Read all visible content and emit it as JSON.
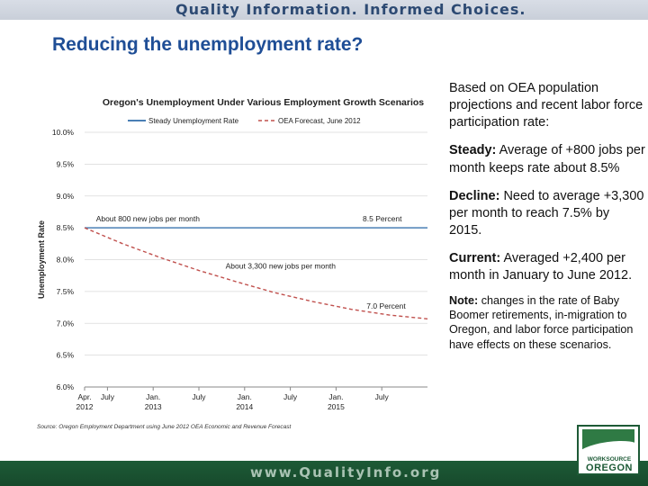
{
  "banner": {
    "top": "Quality Information. Informed Choices.",
    "bottom": "www.QualityInfo.org"
  },
  "slide": {
    "title": "Reducing the unemployment rate?"
  },
  "right_panel": {
    "intro": "Based on OEA population projections and recent labor force participation rate:",
    "steady_label": "Steady:",
    "steady_text": "Average of +800 jobs per month keeps rate about 8.5%",
    "decline_label": "Decline:",
    "decline_text": "Need to average +3,300 per month to reach 7.5% by 2015.",
    "current_label": "Current:",
    "current_text": "Averaged +2,400 per month in January to June 2012.",
    "note_label": "Note:",
    "note_text": "changes in the rate of Baby Boomer retirements, in-migration to Oregon, and labor force participation have effects on these scenarios."
  },
  "logo": {
    "line1": "WORKSOURCE",
    "line2": "OREGON"
  },
  "colors": {
    "steady": "#4a7fb5",
    "forecast": "#c0504d",
    "title": "#1f4e96"
  },
  "chart_data": {
    "type": "line",
    "title": "Oregon's Unemployment Under Various Employment Growth Scenarios",
    "ylabel": "Unemployment Rate",
    "xlabel": "",
    "ylim": [
      6.0,
      10.0
    ],
    "xlim": [
      0,
      45
    ],
    "y_ticks": [
      6.0,
      6.5,
      7.0,
      7.5,
      8.0,
      8.5,
      9.0,
      9.5,
      10.0
    ],
    "y_tick_labels": [
      "6.0%",
      "6.5%",
      "7.0%",
      "7.5%",
      "8.0%",
      "8.5%",
      "9.0%",
      "9.5%",
      "10.0%"
    ],
    "x_ticks": [
      {
        "pos": 0,
        "line1": "Apr.",
        "line2": "2012"
      },
      {
        "pos": 3,
        "line1": "July",
        "line2": ""
      },
      {
        "pos": 9,
        "line1": "Jan.",
        "line2": "2013"
      },
      {
        "pos": 15,
        "line1": "July",
        "line2": ""
      },
      {
        "pos": 21,
        "line1": "Jan.",
        "line2": "2014"
      },
      {
        "pos": 27,
        "line1": "July",
        "line2": ""
      },
      {
        "pos": 33,
        "line1": "Jan.",
        "line2": "2015"
      },
      {
        "pos": 39,
        "line1": "July",
        "line2": ""
      }
    ],
    "series": [
      {
        "name": "Steady Unemployment Rate",
        "style": "solid",
        "color": "#4a7fb5",
        "x": [
          0,
          45
        ],
        "y": [
          8.5,
          8.5
        ]
      },
      {
        "name": "OEA Forecast, June 2012",
        "style": "dashed",
        "color": "#c0504d",
        "x": [
          0,
          5,
          10,
          15,
          20,
          25,
          30,
          35,
          40,
          45
        ],
        "y": [
          8.5,
          8.25,
          8.03,
          7.83,
          7.65,
          7.48,
          7.34,
          7.22,
          7.13,
          7.07
        ]
      }
    ],
    "annotations": [
      {
        "text": "About 800 new jobs per month",
        "x": 1.5,
        "y": 8.57
      },
      {
        "text": "8.5 Percent",
        "x": 36.5,
        "y": 8.57
      },
      {
        "text": "About 3,300 new jobs per month",
        "x": 18.5,
        "y": 7.83
      },
      {
        "text": "7.0 Percent",
        "x": 37.0,
        "y": 7.2
      }
    ],
    "source": "Source: Oregon Employment Department using June 2012 OEA Economic and Revenue Forecast"
  }
}
